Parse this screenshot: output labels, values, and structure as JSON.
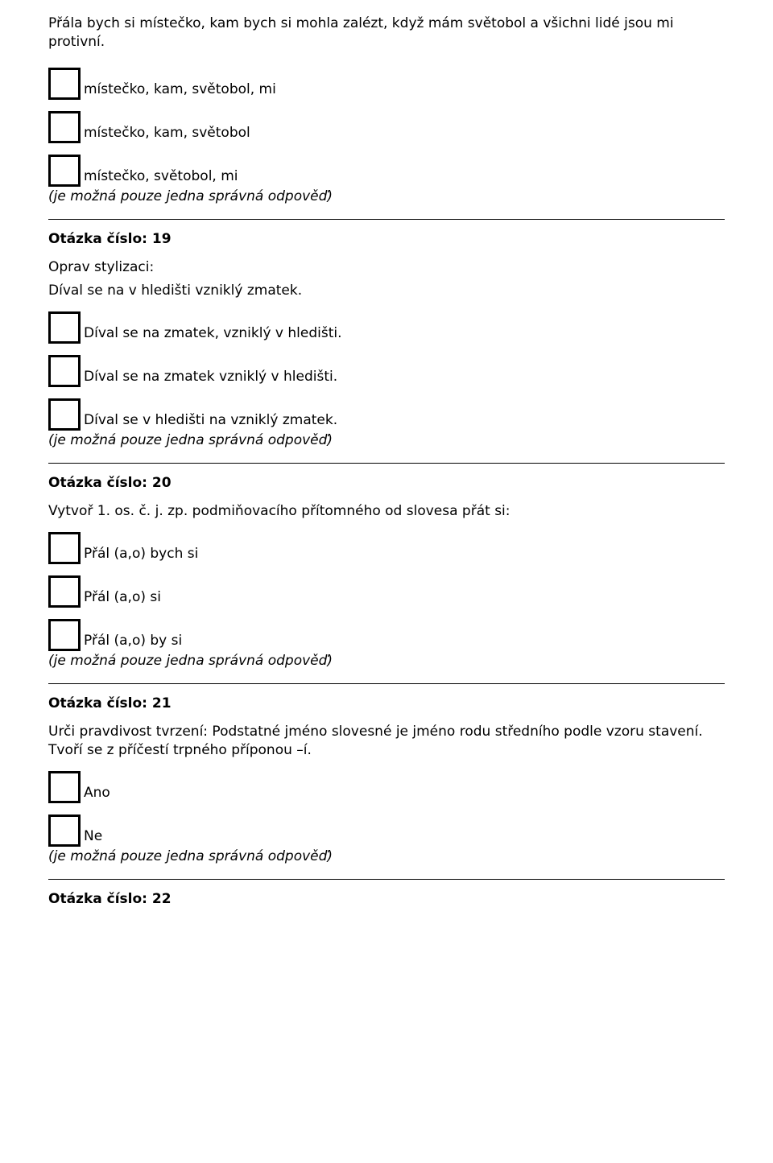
{
  "intro_sentence": "Přála bych si místečko, kam bych si mohla zalézt, když mám světobol a všichni lidé jsou mi protivní.",
  "hint_text": "(je možná pouze jedna správná odpověď)",
  "q18": {
    "options": [
      "místečko, kam, světobol, mi",
      "místečko, kam, světobol",
      "místečko, světobol, mi"
    ]
  },
  "q19": {
    "header": "Otázka číslo: 19",
    "prompt_line1": "Oprav stylizaci:",
    "prompt_line2": "Díval se na v hledišti vzniklý zmatek.",
    "options": [
      "Díval se na zmatek, vzniklý v hledišti.",
      "Díval se na zmatek vzniklý v hledišti.",
      "Díval se v hledišti na vzniklý zmatek."
    ]
  },
  "q20": {
    "header": "Otázka číslo: 20",
    "prompt": "Vytvoř 1. os. č. j. zp. podmiňovacího přítomného od slovesa přát si:",
    "options": [
      "Přál (a,o) bych si",
      "Přál (a,o) si",
      "Přál (a,o) by si"
    ]
  },
  "q21": {
    "header": "Otázka číslo: 21",
    "prompt": "Urči pravdivost tvrzení: Podstatné jméno slovesné je jméno rodu středního podle vzoru stavení. Tvoří se z příčestí trpného příponou –í.",
    "options": [
      "Ano",
      "Ne"
    ]
  },
  "q22": {
    "header": "Otázka číslo: 22"
  }
}
